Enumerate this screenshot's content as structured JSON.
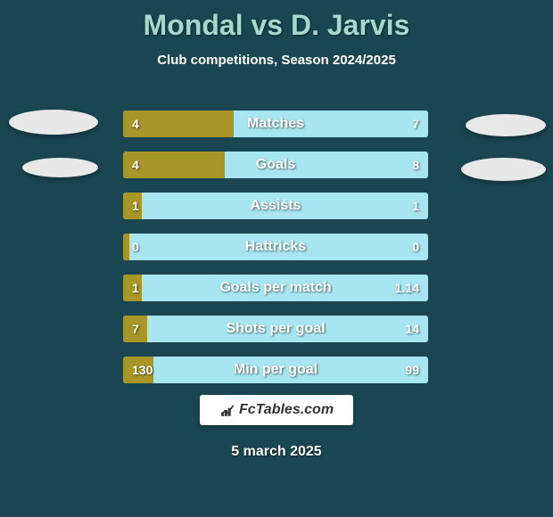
{
  "title": {
    "player1": "Mondal",
    "vs": "vs",
    "player2": "D. Jarvis"
  },
  "subtitle": "Club competitions, Season 2024/2025",
  "stats": [
    {
      "label": "Matches",
      "left_val": "4",
      "right_val": "7",
      "left_num": 4,
      "right_num": 7,
      "fill_pct": 36.4
    },
    {
      "label": "Goals",
      "left_val": "4",
      "right_val": "8",
      "left_num": 4,
      "right_num": 8,
      "fill_pct": 33.3
    },
    {
      "label": "Assists",
      "left_val": "1",
      "right_val": "1",
      "left_num": 1,
      "right_num": 1,
      "fill_pct": 6
    },
    {
      "label": "Hattricks",
      "left_val": "0",
      "right_val": "0",
      "left_num": 0,
      "right_num": 0,
      "fill_pct": 2
    },
    {
      "label": "Goals per match",
      "left_val": "1",
      "right_val": "1.14",
      "left_num": 1,
      "right_num": 1.14,
      "fill_pct": 6
    },
    {
      "label": "Shots per goal",
      "left_val": "7",
      "right_val": "14",
      "left_num": 7,
      "right_num": 14,
      "fill_pct": 8
    },
    {
      "label": "Min per goal",
      "left_val": "130",
      "right_val": "99",
      "left_num": 130,
      "right_num": 99,
      "fill_pct": 10
    }
  ],
  "colors": {
    "background": "#1a4652",
    "title_color": "#a7d8ce",
    "bar_bg": "#a7e6f0",
    "bar_fill": "#a89629",
    "text": "#ffffff"
  },
  "badge_text": "FcTables.com",
  "date": "5 march 2025"
}
